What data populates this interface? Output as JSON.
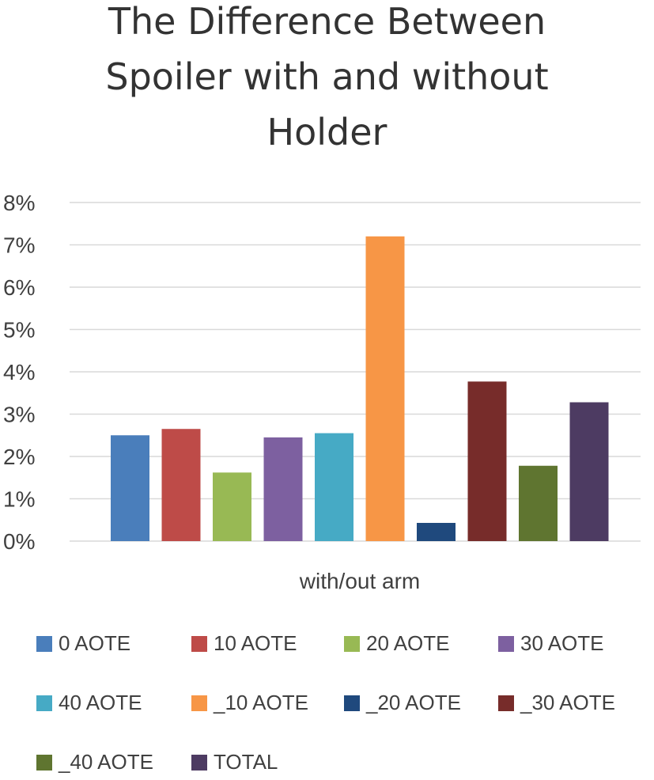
{
  "chart_data": {
    "type": "bar",
    "title": [
      "The Difference Between",
      "Spoiler with and without",
      "Holder"
    ],
    "xlabel": "with/out arm",
    "ylabel": "",
    "ylim": [
      0,
      8
    ],
    "y_ticks": [
      "0%",
      "1%",
      "2%",
      "3%",
      "4%",
      "5%",
      "6%",
      "7%",
      "8%"
    ],
    "grid": true,
    "legend_position": "bottom",
    "categories": [
      "with/out arm"
    ],
    "series": [
      {
        "name": "0 AOTE",
        "values": [
          2.5
        ],
        "color": "#4a7ebb"
      },
      {
        "name": "10 AOTE",
        "values": [
          2.65
        ],
        "color": "#be4b48"
      },
      {
        "name": "20 AOTE",
        "values": [
          1.62
        ],
        "color": "#98b954"
      },
      {
        "name": "30 AOTE",
        "values": [
          2.45
        ],
        "color": "#7d60a0"
      },
      {
        "name": "40 AOTE",
        "values": [
          2.55
        ],
        "color": "#46aac5"
      },
      {
        "name": "_10 AOTE",
        "values": [
          7.2
        ],
        "color": "#f79646"
      },
      {
        "name": "_20 AOTE",
        "values": [
          0.43
        ],
        "color": "#1f497d"
      },
      {
        "name": "_30 AOTE",
        "values": [
          3.77
        ],
        "color": "#772c2a"
      },
      {
        "name": "_40 AOTE",
        "values": [
          1.78
        ],
        "color": "#5f7530"
      },
      {
        "name": "TOTAL",
        "values": [
          3.28
        ],
        "color": "#4d3b62"
      }
    ]
  }
}
